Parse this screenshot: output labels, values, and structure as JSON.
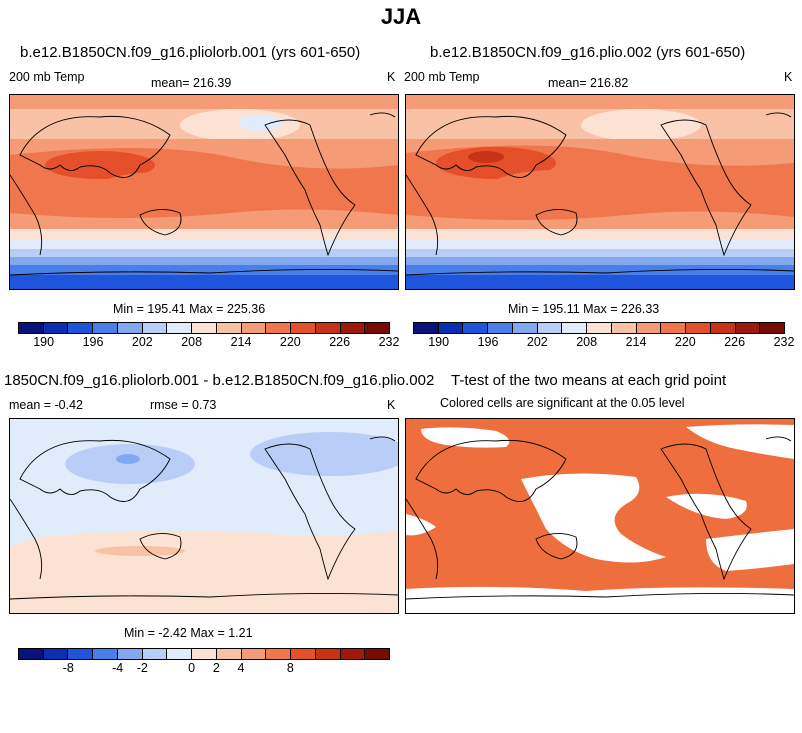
{
  "title": "JJA",
  "panels": {
    "p1": {
      "title": "b.e12.B1850CN.f09_g16.pliolorb.001 (yrs 601-650)",
      "left_label": "200 mb Temp",
      "center_label": "mean= 216.39",
      "right_label": "K",
      "stats": "Min = 195.41 Max = 225.36"
    },
    "p2": {
      "title": "b.e12.B1850CN.f09_g16.plio.002 (yrs 601-650)",
      "left_label": "200 mb Temp",
      "center_label": "mean= 216.82",
      "right_label": "K",
      "stats": "Min = 195.11 Max = 226.33"
    },
    "p3": {
      "title": "1850CN.f09_g16.pliolorb.001 - b.e12.B1850CN.f09_g16.plio.002",
      "left_label": "mean =   -0.42",
      "center_label": "rmse =    0.73",
      "right_label": "K",
      "stats": "Min =  -2.42 Max =   1.21"
    },
    "p4": {
      "title": "T-test of the two means at each grid point",
      "subtitle": "Colored cells are significant at the 0.05 level"
    }
  },
  "colorbars": {
    "abs": {
      "colors": [
        "#08127a",
        "#0b2fb0",
        "#1f55dc",
        "#4a7fea",
        "#82a8f0",
        "#b8cef7",
        "#e0ebfb",
        "#fbe2d2",
        "#f9c1a5",
        "#f59b76",
        "#f0764d",
        "#e54f29",
        "#c83318",
        "#9e1a0c",
        "#780c05"
      ],
      "ticks": [
        "190",
        "196",
        "202",
        "208",
        "214",
        "220",
        "226",
        "232"
      ]
    },
    "diff": {
      "colors": [
        "#08127a",
        "#0b2fb0",
        "#1f55dc",
        "#4a7fea",
        "#82a8f0",
        "#b8cef7",
        "#e0ebfb",
        "#fbe2d2",
        "#f9c1a5",
        "#f59b76",
        "#f0764d",
        "#e54f29",
        "#c83318",
        "#9e1a0c",
        "#780c05"
      ],
      "ticks": [
        "-8",
        "-4",
        "-2",
        "0",
        "2",
        "4",
        "8"
      ]
    }
  },
  "ttest_color": "#ef6e3e"
}
